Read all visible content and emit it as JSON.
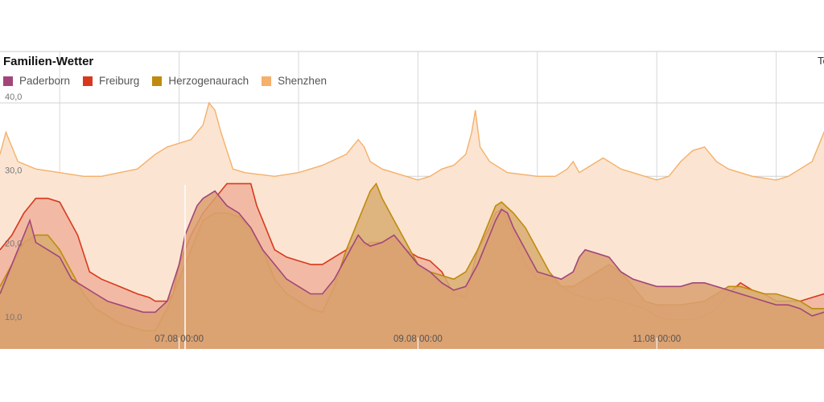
{
  "chart_data": {
    "type": "area",
    "title": "Familien-Wetter",
    "corner_label": "Te",
    "ylim": [
      6.5,
      47
    ],
    "xlim": [
      5.5,
      12.4
    ],
    "y_ticks": [
      {
        "v": 40,
        "label": "40,0"
      },
      {
        "v": 30,
        "label": "30,0"
      },
      {
        "v": 20,
        "label": "20,0"
      },
      {
        "v": 10,
        "label": "10,0"
      }
    ],
    "x_ticks": [
      {
        "v": 7.0,
        "label": "07.08 00:00"
      },
      {
        "v": 9.0,
        "label": "09.08 00:00"
      },
      {
        "v": 11.0,
        "label": "11.08 00:00"
      }
    ],
    "grid": true,
    "legend_position": "top-left",
    "series": [
      {
        "name": "Shenzhen",
        "color": "#f5b06a",
        "fill": "#fbe5d2",
        "points": [
          [
            5.5,
            33
          ],
          [
            5.55,
            36
          ],
          [
            5.6,
            34
          ],
          [
            5.65,
            32
          ],
          [
            5.8,
            31
          ],
          [
            6.0,
            30.5
          ],
          [
            6.2,
            30
          ],
          [
            6.35,
            30
          ],
          [
            6.5,
            30.5
          ],
          [
            6.65,
            31
          ],
          [
            6.8,
            33
          ],
          [
            6.9,
            34
          ],
          [
            7.0,
            34.5
          ],
          [
            7.1,
            35
          ],
          [
            7.2,
            37
          ],
          [
            7.25,
            40
          ],
          [
            7.3,
            39
          ],
          [
            7.35,
            36
          ],
          [
            7.45,
            31
          ],
          [
            7.55,
            30.5
          ],
          [
            7.8,
            30
          ],
          [
            8.0,
            30.5
          ],
          [
            8.2,
            31.5
          ],
          [
            8.4,
            33
          ],
          [
            8.5,
            35
          ],
          [
            8.55,
            34
          ],
          [
            8.6,
            32
          ],
          [
            8.7,
            31
          ],
          [
            8.9,
            30
          ],
          [
            9.0,
            29.5
          ],
          [
            9.1,
            30
          ],
          [
            9.2,
            31
          ],
          [
            9.3,
            31.5
          ],
          [
            9.4,
            33
          ],
          [
            9.45,
            36
          ],
          [
            9.48,
            39
          ],
          [
            9.52,
            34
          ],
          [
            9.6,
            32
          ],
          [
            9.75,
            30.5
          ],
          [
            10.0,
            30
          ],
          [
            10.15,
            30
          ],
          [
            10.25,
            31
          ],
          [
            10.3,
            32
          ],
          [
            10.35,
            30.5
          ],
          [
            10.45,
            31.5
          ],
          [
            10.55,
            32.5
          ],
          [
            10.7,
            31
          ],
          [
            10.9,
            30
          ],
          [
            11.0,
            29.5
          ],
          [
            11.1,
            30
          ],
          [
            11.2,
            32
          ],
          [
            11.3,
            33.5
          ],
          [
            11.4,
            34
          ],
          [
            11.45,
            33
          ],
          [
            11.5,
            32
          ],
          [
            11.6,
            31
          ],
          [
            11.8,
            30
          ],
          [
            12.0,
            29.5
          ],
          [
            12.1,
            30
          ],
          [
            12.2,
            31
          ],
          [
            12.3,
            32
          ],
          [
            12.35,
            34
          ],
          [
            12.4,
            36
          ],
          [
            12.45,
            35
          ],
          [
            12.5,
            38
          ],
          [
            12.55,
            40.5
          ],
          [
            12.6,
            35
          ],
          [
            12.65,
            31
          ],
          [
            12.75,
            30
          ],
          [
            13.0,
            29.5
          ]
        ]
      },
      {
        "name": "Freiburg",
        "color": "#d9381e",
        "fill": "#f0b39c",
        "points": [
          [
            5.5,
            20
          ],
          [
            5.6,
            22
          ],
          [
            5.7,
            25
          ],
          [
            5.75,
            26
          ],
          [
            5.8,
            27
          ],
          [
            5.9,
            27
          ],
          [
            6.0,
            26.5
          ],
          [
            6.05,
            25
          ],
          [
            6.15,
            22
          ],
          [
            6.25,
            17
          ],
          [
            6.35,
            16
          ],
          [
            6.5,
            15
          ],
          [
            6.65,
            14
          ],
          [
            6.75,
            13.5
          ],
          [
            6.8,
            13
          ],
          [
            6.85,
            13
          ],
          [
            6.9,
            13
          ],
          [
            6.95,
            14
          ],
          [
            7.0,
            18
          ],
          [
            7.1,
            22
          ],
          [
            7.2,
            25
          ],
          [
            7.3,
            27
          ],
          [
            7.4,
            29
          ],
          [
            7.5,
            29
          ],
          [
            7.55,
            29
          ],
          [
            7.6,
            29
          ],
          [
            7.65,
            26
          ],
          [
            7.7,
            24
          ],
          [
            7.75,
            22
          ],
          [
            7.8,
            20
          ],
          [
            7.9,
            19
          ],
          [
            8.0,
            18.5
          ],
          [
            8.1,
            18
          ],
          [
            8.2,
            18
          ],
          [
            8.3,
            19
          ],
          [
            8.4,
            20
          ],
          [
            8.5,
            21
          ],
          [
            8.55,
            20.5
          ],
          [
            8.6,
            21
          ],
          [
            8.7,
            21
          ],
          [
            8.8,
            22
          ],
          [
            8.9,
            20
          ],
          [
            9.0,
            19
          ],
          [
            9.1,
            18.5
          ],
          [
            9.2,
            17
          ],
          [
            9.3,
            14
          ],
          [
            9.4,
            13.5
          ],
          [
            9.5,
            20
          ],
          [
            9.6,
            23
          ],
          [
            9.65,
            25
          ],
          [
            9.7,
            25.5
          ],
          [
            9.75,
            24
          ],
          [
            9.8,
            22
          ],
          [
            9.9,
            18
          ],
          [
            10.0,
            16
          ],
          [
            10.1,
            16
          ],
          [
            10.2,
            15
          ],
          [
            10.3,
            14
          ],
          [
            10.4,
            13.5
          ],
          [
            10.5,
            13
          ],
          [
            10.6,
            13.5
          ],
          [
            10.7,
            13
          ],
          [
            10.8,
            12.5
          ],
          [
            10.9,
            12
          ],
          [
            11.0,
            11
          ],
          [
            11.1,
            10.5
          ],
          [
            11.2,
            10.5
          ],
          [
            11.3,
            10.5
          ],
          [
            11.4,
            11
          ],
          [
            11.5,
            12
          ],
          [
            11.6,
            14
          ],
          [
            11.7,
            15.5
          ],
          [
            11.8,
            14.5
          ],
          [
            11.9,
            14
          ],
          [
            12.0,
            13
          ],
          [
            12.1,
            13
          ],
          [
            12.2,
            13
          ],
          [
            12.3,
            13.5
          ],
          [
            12.4,
            14
          ],
          [
            12.5,
            15
          ],
          [
            12.6,
            17
          ],
          [
            12.7,
            20
          ],
          [
            12.75,
            22
          ],
          [
            12.8,
            21
          ],
          [
            12.85,
            20
          ],
          [
            13.0,
            19
          ]
        ]
      },
      {
        "name": "Herzogenaurach",
        "color": "#c08a0e",
        "fill": "#d8ad70",
        "points": [
          [
            5.5,
            15
          ],
          [
            5.6,
            18
          ],
          [
            5.7,
            21
          ],
          [
            5.8,
            22
          ],
          [
            5.9,
            22
          ],
          [
            6.0,
            20
          ],
          [
            6.1,
            17
          ],
          [
            6.2,
            14
          ],
          [
            6.3,
            12
          ],
          [
            6.4,
            11
          ],
          [
            6.5,
            10
          ],
          [
            6.6,
            9.5
          ],
          [
            6.7,
            9
          ],
          [
            6.8,
            9
          ],
          [
            6.9,
            12
          ],
          [
            7.0,
            16
          ],
          [
            7.1,
            20
          ],
          [
            7.2,
            24
          ],
          [
            7.3,
            25
          ],
          [
            7.4,
            25
          ],
          [
            7.5,
            24.5
          ],
          [
            7.6,
            23
          ],
          [
            7.7,
            20
          ],
          [
            7.8,
            16
          ],
          [
            7.9,
            14
          ],
          [
            8.0,
            13
          ],
          [
            8.1,
            12
          ],
          [
            8.2,
            11.5
          ],
          [
            8.3,
            15
          ],
          [
            8.4,
            20
          ],
          [
            8.5,
            24
          ],
          [
            8.6,
            28
          ],
          [
            8.65,
            29
          ],
          [
            8.7,
            27
          ],
          [
            8.8,
            24
          ],
          [
            8.9,
            21
          ],
          [
            9.0,
            18
          ],
          [
            9.1,
            17
          ],
          [
            9.2,
            16.5
          ],
          [
            9.3,
            16
          ],
          [
            9.4,
            17
          ],
          [
            9.5,
            20
          ],
          [
            9.6,
            24
          ],
          [
            9.65,
            26
          ],
          [
            9.7,
            26.5
          ],
          [
            9.8,
            25
          ],
          [
            9.9,
            23
          ],
          [
            10.0,
            20
          ],
          [
            10.1,
            17
          ],
          [
            10.2,
            15
          ],
          [
            10.3,
            15
          ],
          [
            10.4,
            16
          ],
          [
            10.5,
            17
          ],
          [
            10.6,
            18
          ],
          [
            10.7,
            17
          ],
          [
            10.8,
            15
          ],
          [
            10.9,
            13
          ],
          [
            11.0,
            12.5
          ],
          [
            11.2,
            12.5
          ],
          [
            11.4,
            13
          ],
          [
            11.5,
            14
          ],
          [
            11.6,
            15
          ],
          [
            11.7,
            15
          ],
          [
            11.8,
            14.5
          ],
          [
            11.9,
            14
          ],
          [
            12.0,
            14
          ],
          [
            12.1,
            13.5
          ],
          [
            12.2,
            13
          ],
          [
            12.3,
            12
          ],
          [
            12.4,
            12
          ],
          [
            12.5,
            13
          ],
          [
            12.6,
            15
          ],
          [
            12.7,
            19
          ],
          [
            12.75,
            21
          ],
          [
            12.8,
            20
          ],
          [
            12.9,
            18
          ],
          [
            13.0,
            16
          ]
        ]
      },
      {
        "name": "Paderborn",
        "color": "#a2467a",
        "fill": "#dba071",
        "points": [
          [
            5.5,
            14
          ],
          [
            5.6,
            18
          ],
          [
            5.7,
            22
          ],
          [
            5.75,
            24
          ],
          [
            5.8,
            21
          ],
          [
            5.9,
            20
          ],
          [
            6.0,
            19
          ],
          [
            6.1,
            16
          ],
          [
            6.2,
            15
          ],
          [
            6.3,
            14
          ],
          [
            6.4,
            13
          ],
          [
            6.5,
            12.5
          ],
          [
            6.6,
            12
          ],
          [
            6.7,
            11.5
          ],
          [
            6.8,
            11.5
          ],
          [
            6.9,
            13
          ],
          [
            7.0,
            18
          ],
          [
            7.05,
            22
          ],
          [
            7.1,
            24
          ],
          [
            7.15,
            26
          ],
          [
            7.2,
            27
          ],
          [
            7.3,
            28
          ],
          [
            7.4,
            26
          ],
          [
            7.5,
            25
          ],
          [
            7.55,
            24
          ],
          [
            7.6,
            23
          ],
          [
            7.7,
            20
          ],
          [
            7.8,
            18
          ],
          [
            7.9,
            16
          ],
          [
            8.0,
            15
          ],
          [
            8.1,
            14
          ],
          [
            8.2,
            14
          ],
          [
            8.3,
            16
          ],
          [
            8.4,
            19
          ],
          [
            8.5,
            22
          ],
          [
            8.55,
            21
          ],
          [
            8.6,
            20.5
          ],
          [
            8.7,
            21
          ],
          [
            8.8,
            22
          ],
          [
            8.9,
            20
          ],
          [
            9.0,
            18
          ],
          [
            9.1,
            17
          ],
          [
            9.2,
            15.5
          ],
          [
            9.3,
            14.5
          ],
          [
            9.4,
            15
          ],
          [
            9.5,
            18
          ],
          [
            9.6,
            22
          ],
          [
            9.65,
            24
          ],
          [
            9.7,
            25.5
          ],
          [
            9.75,
            25
          ],
          [
            9.8,
            23
          ],
          [
            9.9,
            20
          ],
          [
            10.0,
            17
          ],
          [
            10.1,
            16.5
          ],
          [
            10.2,
            16
          ],
          [
            10.3,
            17
          ],
          [
            10.35,
            19
          ],
          [
            10.4,
            20
          ],
          [
            10.5,
            19.5
          ],
          [
            10.6,
            19
          ],
          [
            10.7,
            17
          ],
          [
            10.8,
            16
          ],
          [
            10.9,
            15.5
          ],
          [
            11.0,
            15
          ],
          [
            11.1,
            15
          ],
          [
            11.2,
            15
          ],
          [
            11.3,
            15.5
          ],
          [
            11.4,
            15.5
          ],
          [
            11.5,
            15
          ],
          [
            11.6,
            14.5
          ],
          [
            11.7,
            14
          ],
          [
            11.8,
            13.5
          ],
          [
            11.9,
            13
          ],
          [
            12.0,
            12.5
          ],
          [
            12.1,
            12.5
          ],
          [
            12.2,
            12
          ],
          [
            12.3,
            11
          ],
          [
            12.4,
            11.5
          ],
          [
            12.5,
            12
          ],
          [
            12.6,
            13
          ],
          [
            12.7,
            15
          ],
          [
            12.8,
            16.5
          ],
          [
            12.9,
            17
          ],
          [
            13.0,
            17
          ]
        ]
      }
    ],
    "legend_order": [
      "Paderborn",
      "Freiburg",
      "Herzogenaurach",
      "Shenzhen"
    ]
  }
}
